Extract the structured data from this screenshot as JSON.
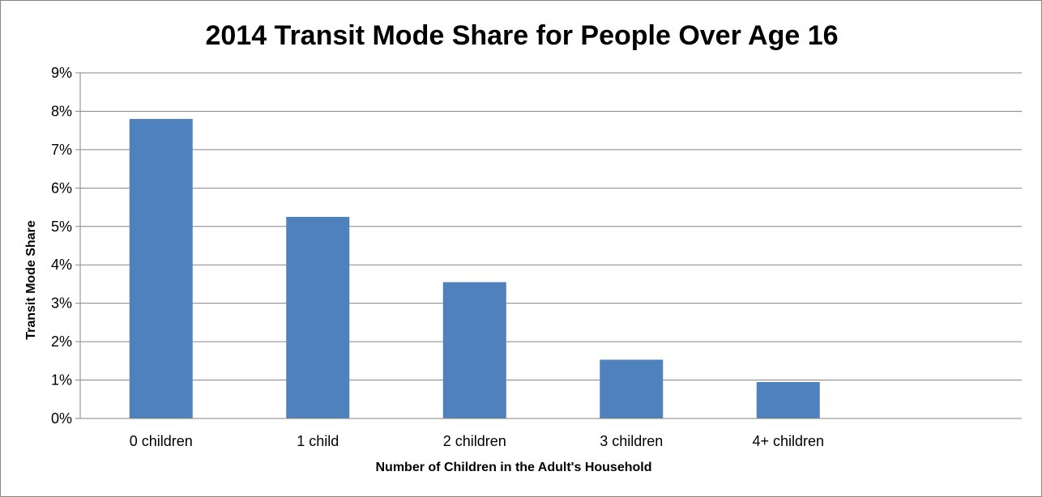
{
  "chart_data": {
    "type": "bar",
    "title": "2014 Transit Mode Share for People Over Age 16",
    "xlabel": "Number of Children in the Adult's Household",
    "ylabel": "Transit Mode Share",
    "categories": [
      "0 children",
      "1 child",
      "2 children",
      "3 children",
      "4+ children"
    ],
    "values": [
      7.8,
      5.25,
      3.55,
      1.53,
      0.95
    ],
    "value_unit": "%",
    "ylim": [
      0,
      9
    ],
    "yticks": [
      "0%",
      "1%",
      "2%",
      "3%",
      "4%",
      "5%",
      "6%",
      "7%",
      "8%",
      "9%"
    ],
    "grid": true,
    "legend": "none",
    "bar_color": "#4F81BD",
    "grid_color": "#868686"
  }
}
